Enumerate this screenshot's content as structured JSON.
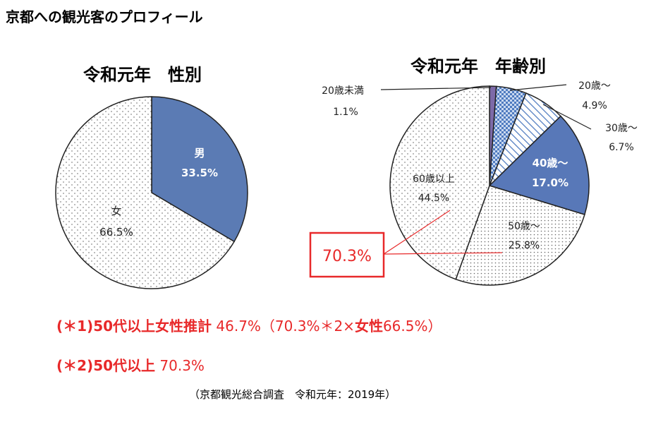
{
  "page_title": "京都への観光客のプロフィール",
  "chart_data": [
    {
      "type": "pie",
      "title": "令和元年　性別",
      "slices": [
        {
          "label": "男",
          "value": 33.5,
          "display": "33.5%",
          "color": "#5b7bb4"
        },
        {
          "label": "女",
          "value": 66.5,
          "display": "66.5%",
          "color": "#ffffff"
        }
      ]
    },
    {
      "type": "pie",
      "title": "令和元年　年齢別",
      "slices": [
        {
          "label": "20歳未満",
          "value": 1.1,
          "display": "1.1%",
          "color": "#7d6aa8"
        },
        {
          "label": "20歳～",
          "value": 4.9,
          "display": "4.9%",
          "color": "#4f7bc0"
        },
        {
          "label": "30歳～",
          "value": 6.7,
          "display": "6.7%",
          "color": "#4f7bc0"
        },
        {
          "label": "40歳～",
          "value": 17.0,
          "display": "17.0%",
          "color": "#5878b8"
        },
        {
          "label": "50歳～",
          "value": 25.8,
          "display": "25.8%",
          "color": "#ffffff"
        },
        {
          "label": "60歳以上",
          "value": 44.5,
          "display": "44.5%",
          "color": "#ffffff"
        }
      ],
      "annotation": "70.3%"
    }
  ],
  "notes": {
    "note1_prefix": "(＊1)50代以上女性推計",
    "note1_rest": " 46.7%（70.3%＊2×",
    "note1_bold2": "女性",
    "note1_tail": "66.5%）",
    "note2_prefix": "(＊2)50代以上",
    "note2_rest": " 70.3%"
  },
  "source": "（京都観光総合調査　令和元年：2019年）",
  "colors": {
    "accent_red": "#e8292a",
    "blue": "#5b7bb4",
    "purple": "#7d6aa8"
  }
}
